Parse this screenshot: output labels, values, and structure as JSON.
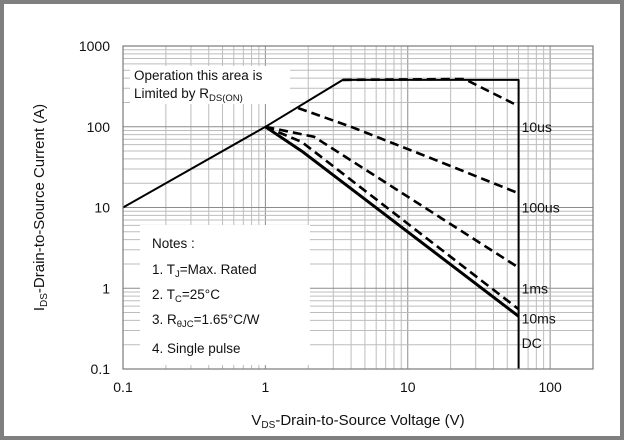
{
  "chart_data": {
    "type": "line",
    "title": "",
    "x_scale": "log",
    "y_scale": "log",
    "xlim": [
      0.1,
      200
    ],
    "ylim": [
      0.1,
      1000
    ],
    "x_ticks": [
      "0.1",
      "1",
      "10",
      "100"
    ],
    "y_ticks": [
      "0.1",
      "1",
      "10",
      "100",
      "1000"
    ],
    "xlabel": {
      "main": "V",
      "sub": "DS",
      "rest": "-Drain-to-Source Voltage  (V)"
    },
    "ylabel": {
      "main": "I",
      "sub": "DS",
      "rest": "-Drain-to-Source Current (A)"
    },
    "rds_annotation": {
      "line1": "Operation this area is",
      "line2_main": "Limited  by R",
      "line2_sub": "DS(ON)"
    },
    "notes": {
      "title": "Notes :",
      "items": [
        {
          "prefix": "1. T",
          "sub": "J",
          "suffix": "=Max. Rated"
        },
        {
          "prefix": "2. T",
          "sub": "C",
          "suffix": "=25°C"
        },
        {
          "prefix": "3. R",
          "sub": "θJC",
          "suffix": "=1.65°C/W"
        },
        {
          "prefix": "4. Single pulse",
          "sub": "",
          "suffix": ""
        }
      ]
    },
    "series": [
      {
        "name": "",
        "style": "solid",
        "width": 2,
        "points": [
          [
            0.1,
            10
          ],
          [
            1,
            100
          ],
          [
            3.5,
            380
          ],
          [
            60,
            380
          ],
          [
            60,
            0.1
          ]
        ]
      },
      {
        "name": "10us",
        "style": "dashed",
        "width": 2.6,
        "points": [
          [
            3.5,
            380
          ],
          [
            25,
            390
          ],
          [
            60,
            180
          ]
        ]
      },
      {
        "name": "100us",
        "style": "dashed",
        "width": 2.6,
        "points": [
          [
            1.7,
            170
          ],
          [
            4,
            100
          ],
          [
            15,
            40
          ],
          [
            60,
            15
          ]
        ]
      },
      {
        "name": "1ms",
        "style": "dashed",
        "width": 2.6,
        "points": [
          [
            1,
            100
          ],
          [
            2.2,
            75
          ],
          [
            60,
            1.8
          ]
        ]
      },
      {
        "name": "10ms",
        "style": "dashed",
        "width": 2.6,
        "points": [
          [
            1,
            100
          ],
          [
            1.8,
            65
          ],
          [
            60,
            0.55
          ]
        ]
      },
      {
        "name": "DC",
        "style": "solid",
        "width": 3,
        "points": [
          [
            1,
            100
          ],
          [
            1.8,
            50
          ],
          [
            60,
            0.45
          ]
        ]
      }
    ],
    "curve_labels": [
      {
        "text": "10us",
        "x": 63,
        "y": 100
      },
      {
        "text": "100us",
        "x": 63,
        "y": 10
      },
      {
        "text": "1ms",
        "x": 63,
        "y": 1.0
      },
      {
        "text": "10ms",
        "x": 63,
        "y": 0.42
      },
      {
        "text": "DC",
        "x": 63,
        "y": 0.21
      }
    ]
  }
}
